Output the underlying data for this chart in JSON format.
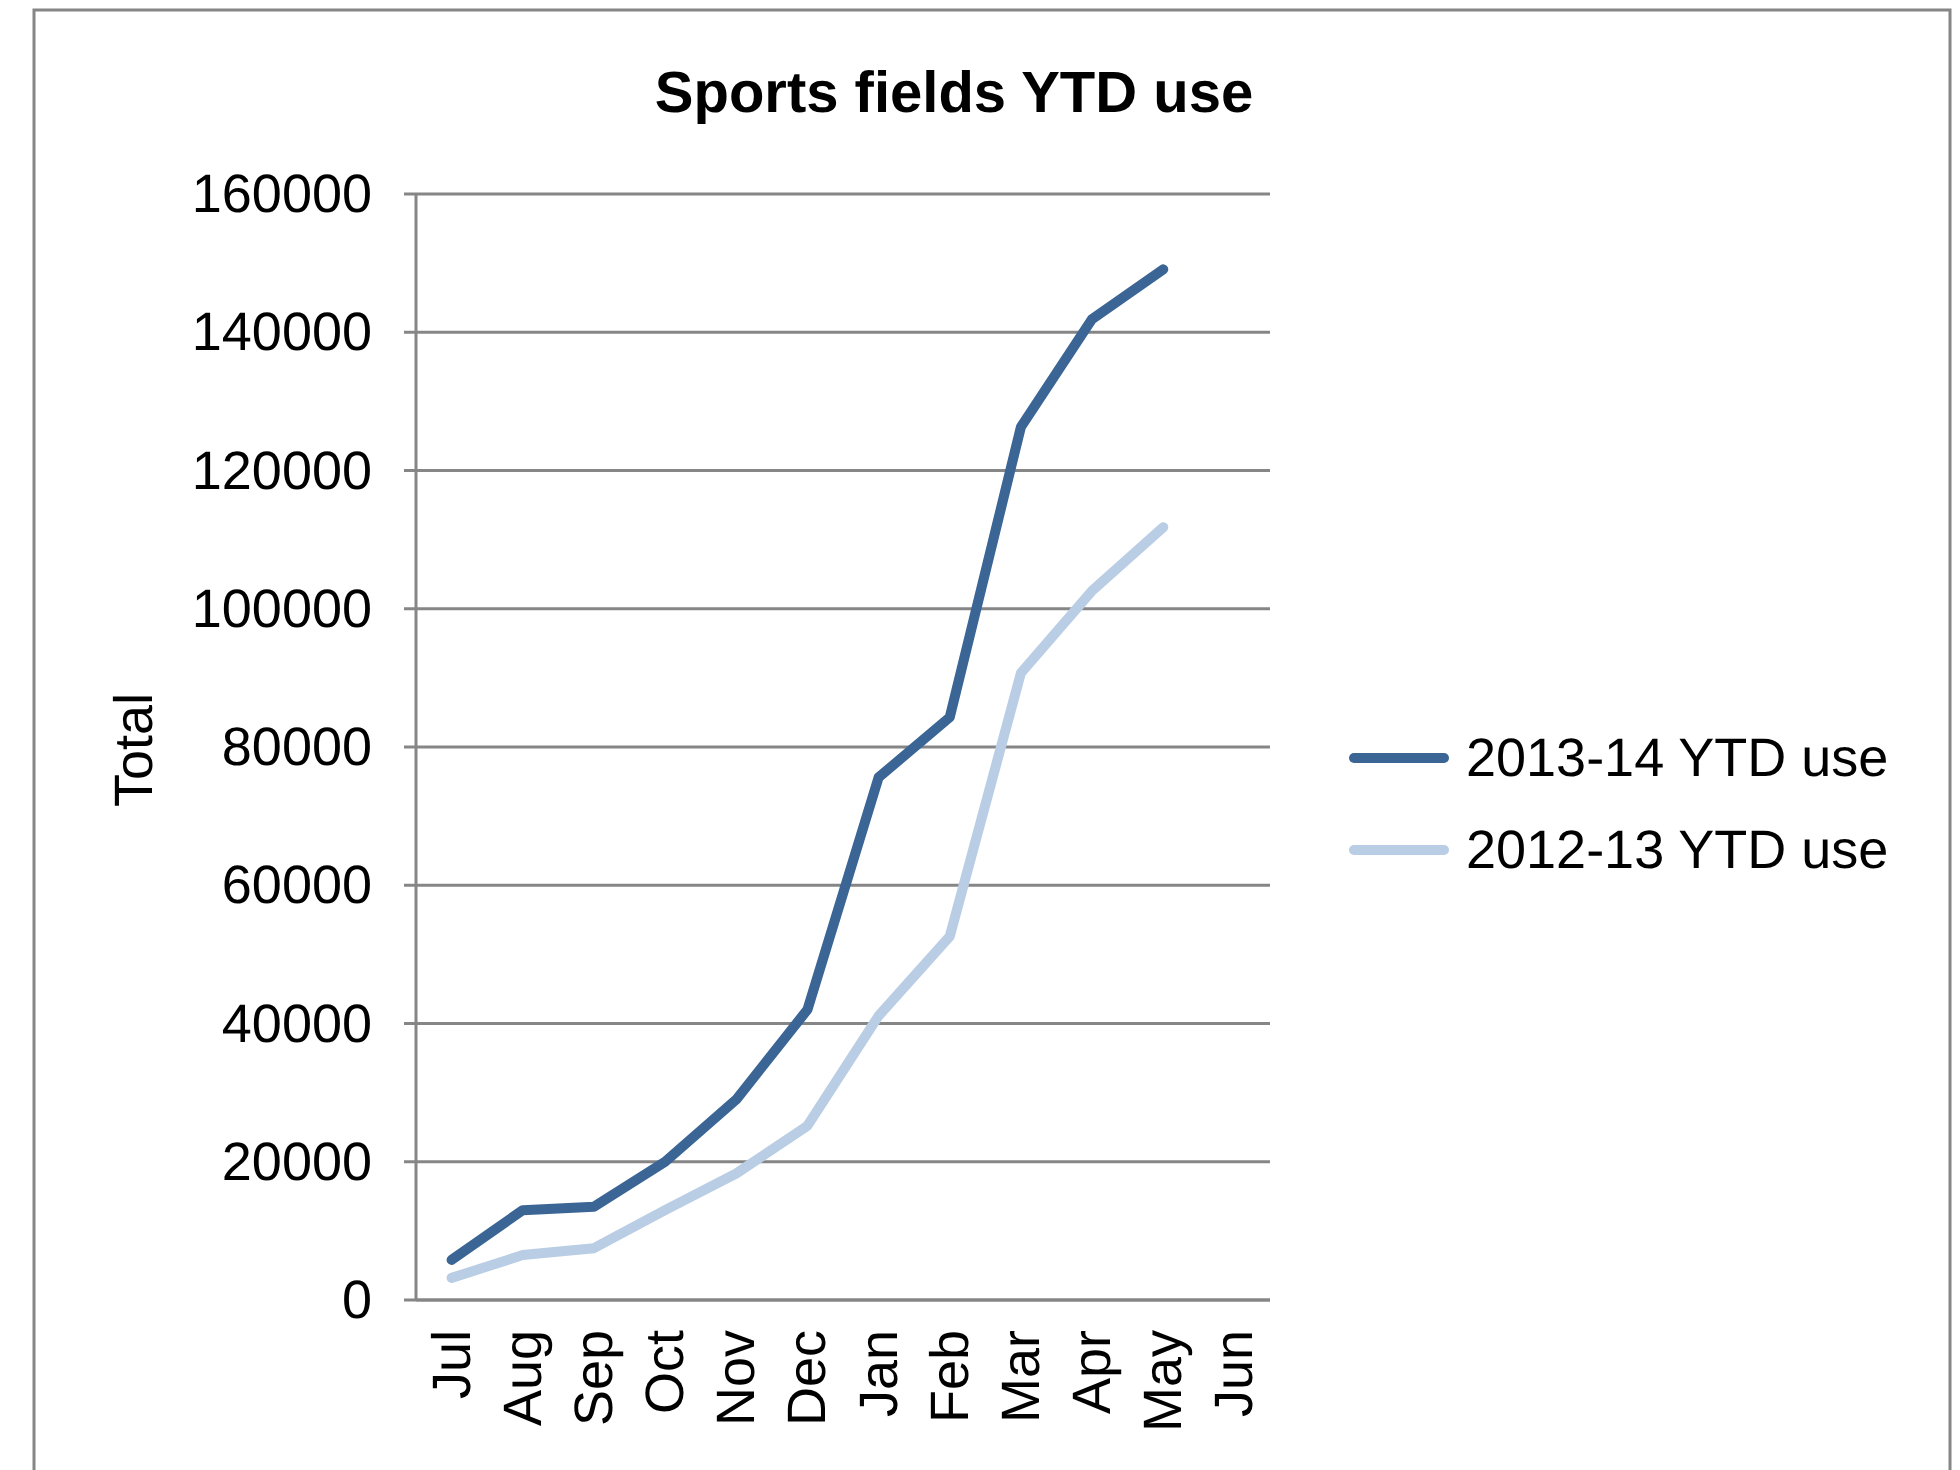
{
  "chart_data": {
    "type": "line",
    "title": "Sports fields YTD use",
    "ylabel": "Total",
    "categories": [
      "Jul",
      "Aug",
      "Sep",
      "Oct",
      "Nov",
      "Dec",
      "Jan",
      "Feb",
      "Mar",
      "Apr",
      "May",
      "Jun"
    ],
    "series": [
      {
        "name": "2013-14 YTD use",
        "color": "#3a6595",
        "values": [
          5800,
          13000,
          13500,
          20000,
          29000,
          42000,
          75600,
          84300,
          126300,
          141900,
          149100,
          null
        ]
      },
      {
        "name": "2012-13 YTD use",
        "color": "#b9cde5",
        "values": [
          3200,
          6500,
          7500,
          13000,
          18300,
          25200,
          41100,
          52600,
          90700,
          102600,
          111800,
          null
        ]
      }
    ],
    "ylim": [
      0,
      160000
    ],
    "yticks": [
      0,
      20000,
      40000,
      60000,
      80000,
      100000,
      120000,
      140000,
      160000
    ],
    "grid": "y",
    "legend": "right",
    "marker": "none",
    "line_style": "solid"
  }
}
